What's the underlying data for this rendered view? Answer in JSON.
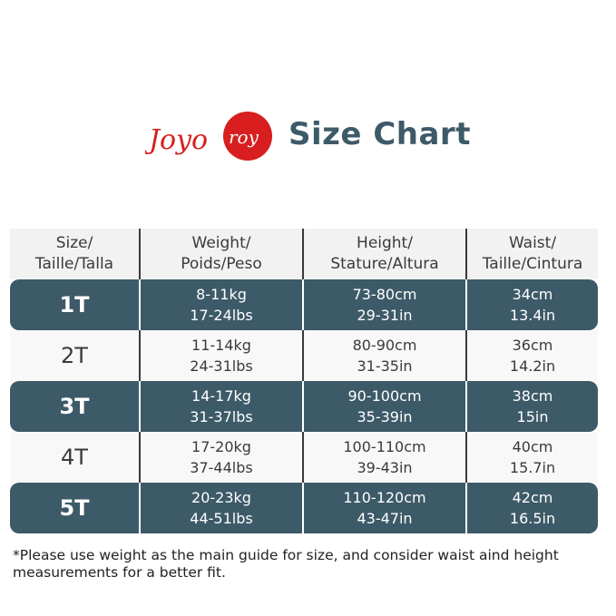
{
  "brand": {
    "logo_text": "Joyo roy",
    "logo_color": "#d81e1e"
  },
  "title": "Size Chart",
  "colors": {
    "accent": "#3d5a68",
    "header_bg": "#f2f2f2"
  },
  "table": {
    "headers": [
      [
        "Size/",
        "Taille/Talla"
      ],
      [
        "Weight/",
        "Poids/Peso"
      ],
      [
        "Height/",
        "Stature/Altura"
      ],
      [
        "Waist/",
        "Taille/Cintura"
      ]
    ],
    "rows": [
      {
        "size": "1T",
        "weight": [
          "8-11kg",
          "17-24lbs"
        ],
        "height": [
          "73-80cm",
          "29-31in"
        ],
        "waist": [
          "34cm",
          "13.4in"
        ]
      },
      {
        "size": "2T",
        "weight": [
          "11-14kg",
          "24-31lbs"
        ],
        "height": [
          "80-90cm",
          "31-35in"
        ],
        "waist": [
          "36cm",
          "14.2in"
        ]
      },
      {
        "size": "3T",
        "weight": [
          "14-17kg",
          "31-37lbs"
        ],
        "height": [
          "90-100cm",
          "35-39in"
        ],
        "waist": [
          "38cm",
          "15in"
        ]
      },
      {
        "size": "4T",
        "weight": [
          "17-20kg",
          "37-44lbs"
        ],
        "height": [
          "100-110cm",
          "39-43in"
        ],
        "waist": [
          "40cm",
          "15.7in"
        ]
      },
      {
        "size": "5T",
        "weight": [
          "20-23kg",
          "44-51lbs"
        ],
        "height": [
          "110-120cm",
          "43-47in"
        ],
        "waist": [
          "42cm",
          "16.5in"
        ]
      }
    ]
  },
  "note": "*Please use weight as the main guide for size, and consider waist aind height measurements for a better fit."
}
